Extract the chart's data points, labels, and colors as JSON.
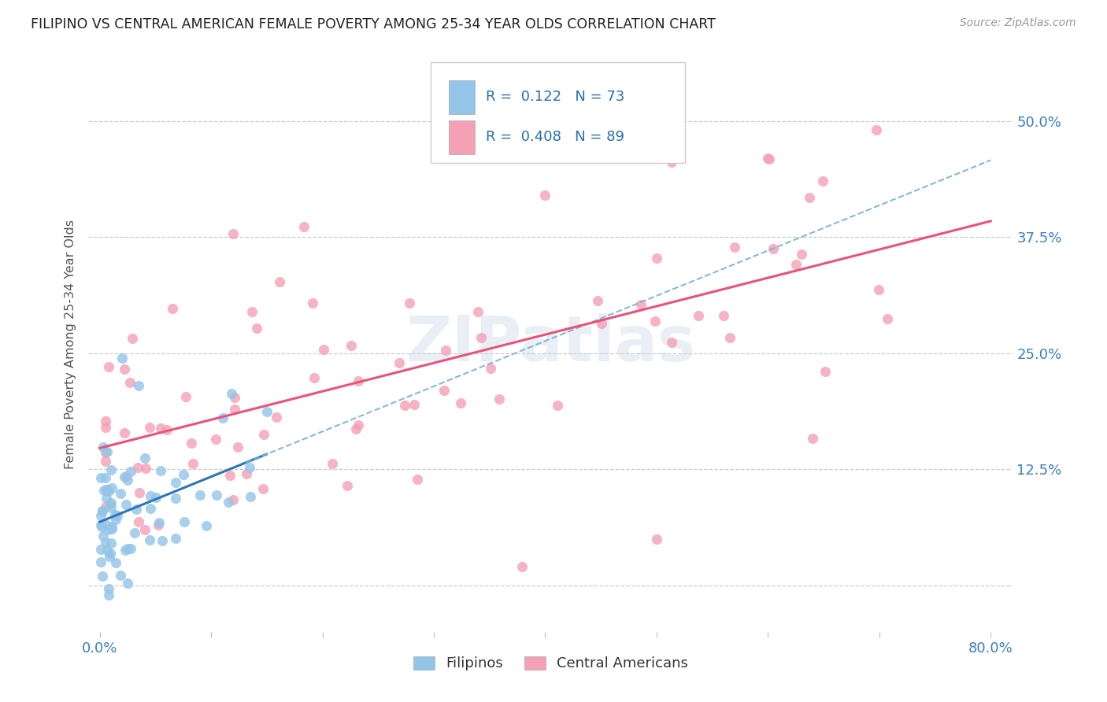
{
  "title": "FILIPINO VS CENTRAL AMERICAN FEMALE POVERTY AMONG 25-34 YEAR OLDS CORRELATION CHART",
  "source": "Source: ZipAtlas.com",
  "ylabel": "Female Poverty Among 25-34 Year Olds",
  "filipino_color": "#92c5e8",
  "central_american_color": "#f4a0b5",
  "trend_filipino_color": "#2e75b6",
  "trend_ca_color": "#e8537a",
  "R_filipino": 0.122,
  "N_filipino": 73,
  "R_ca": 0.408,
  "N_ca": 89,
  "watermark": "ZIPatlas",
  "xlim": [
    0.0,
    0.8
  ],
  "ylim": [
    -0.05,
    0.55
  ],
  "ytick_positions": [
    0.0,
    0.125,
    0.25,
    0.375,
    0.5
  ],
  "ytick_labels": [
    "",
    "12.5%",
    "25.0%",
    "37.5%",
    "50.0%"
  ],
  "xtick_positions": [
    0.0,
    0.1,
    0.2,
    0.3,
    0.4,
    0.5,
    0.6,
    0.7,
    0.8
  ],
  "xtick_labels": [
    "0.0%",
    "",
    "",
    "",
    "",
    "",
    "",
    "",
    "80.0%"
  ],
  "fil_seed": 77,
  "ca_seed": 55
}
